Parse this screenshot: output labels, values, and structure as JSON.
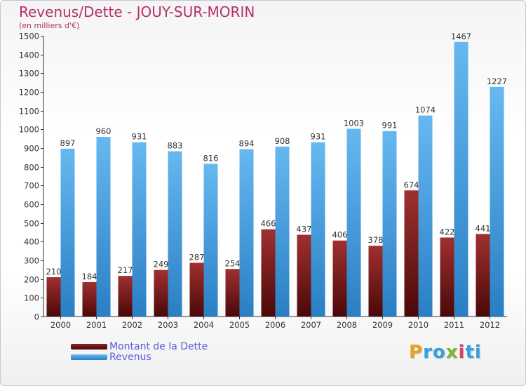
{
  "chart_data": {
    "type": "bar",
    "title": "Revenus/Dette - JOUY-SUR-MORIN",
    "subtitle": "(en milliers d'€)",
    "categories": [
      "2000",
      "2001",
      "2002",
      "2003",
      "2004",
      "2005",
      "2006",
      "2007",
      "2008",
      "2009",
      "2010",
      "2011",
      "2012"
    ],
    "series": [
      {
        "name": "Montant de la Dette",
        "color": "#7a1a1a",
        "values": [
          210,
          184,
          217,
          249,
          287,
          254,
          466,
          437,
          406,
          378,
          674,
          422,
          441
        ]
      },
      {
        "name": "Revenus",
        "color": "#4aa3e6",
        "values": [
          897,
          960,
          931,
          883,
          816,
          894,
          908,
          931,
          1003,
          991,
          1074,
          1467,
          1227
        ]
      }
    ],
    "yticks": [
      0,
      100,
      200,
      300,
      400,
      500,
      600,
      700,
      800,
      900,
      1000,
      1100,
      1200,
      1300,
      1400,
      1500
    ],
    "ylim": [
      0,
      1500
    ],
    "grid": false,
    "legend_position": "bottom-left"
  },
  "brand": {
    "logo_text": "Proxiti"
  }
}
